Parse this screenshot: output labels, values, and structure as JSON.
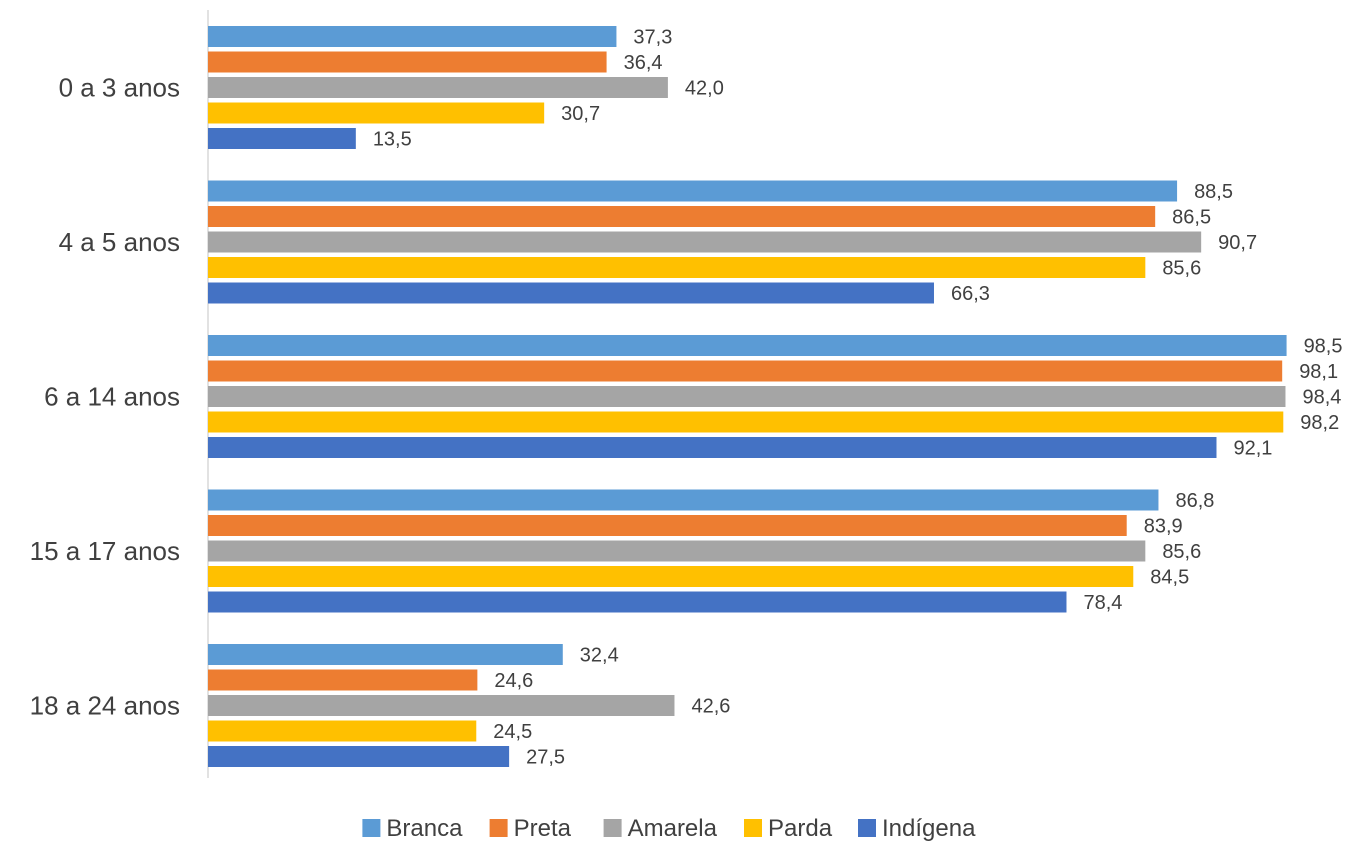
{
  "chart_data": {
    "type": "bar",
    "orientation": "horizontal",
    "title": "",
    "xlabel": "",
    "ylabel": "",
    "categories": [
      "0 a 3 anos",
      "4 a 5 anos",
      "6 a 14 anos",
      "15 a 17 anos",
      "18 a 24 anos"
    ],
    "series": [
      {
        "name": "Branca",
        "color": "#5B9BD5",
        "values": [
          37.3,
          88.5,
          98.5,
          86.8,
          32.4
        ],
        "labels": [
          "37,3",
          "88,5",
          "98,5",
          "86,8",
          "32,4"
        ]
      },
      {
        "name": "Preta",
        "color": "#ED7D31",
        "values": [
          36.4,
          86.5,
          98.1,
          83.9,
          24.6
        ],
        "labels": [
          "36,4",
          "86,5",
          "98,1",
          "83,9",
          "24,6"
        ]
      },
      {
        "name": "Amarela",
        "color": "#A5A5A5",
        "values": [
          42.0,
          90.7,
          98.4,
          85.6,
          42.6
        ],
        "labels": [
          "42,0",
          "90,7",
          "98,4",
          "85,6",
          "42,6"
        ]
      },
      {
        "name": "Parda",
        "color": "#FFC000",
        "values": [
          30.7,
          85.6,
          98.2,
          84.5,
          24.5
        ],
        "labels": [
          "30,7",
          "85,6",
          "98,2",
          "84,5",
          "24,5"
        ]
      },
      {
        "name": "Indígena",
        "color": "#4472C4",
        "values": [
          13.5,
          66.3,
          92.1,
          78.4,
          27.5
        ],
        "labels": [
          "13,5",
          "66,3",
          "92,1",
          "78,4",
          "27,5"
        ]
      }
    ],
    "xlim": [
      0,
      100
    ],
    "grid": false,
    "legend": "bottom"
  }
}
